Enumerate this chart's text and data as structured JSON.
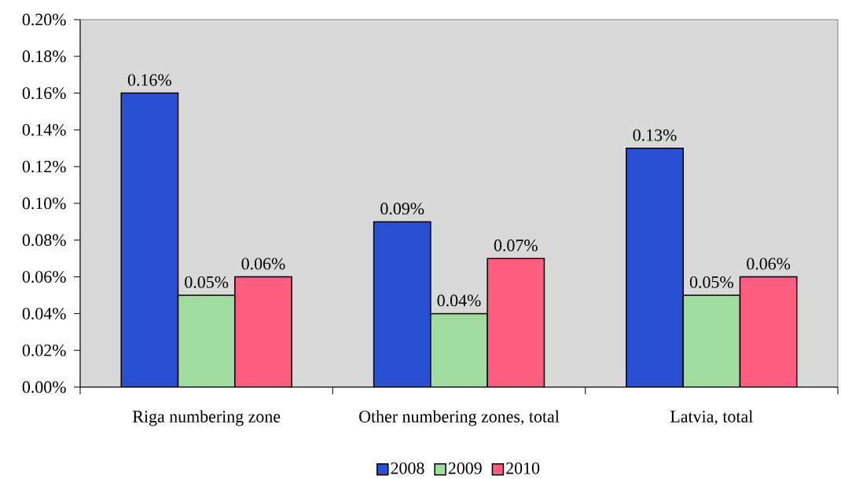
{
  "chart_data": {
    "type": "bar",
    "categories": [
      "Riga numbering zone",
      "Other numbering zones, total",
      "Latvia, total"
    ],
    "series": [
      {
        "name": "2008",
        "color": "#2a4fd0",
        "values": [
          0.16,
          0.09,
          0.13
        ],
        "value_labels": [
          "0.16%",
          "0.09%",
          "0.13%"
        ]
      },
      {
        "name": "2009",
        "color": "#a0dca0",
        "values": [
          0.05,
          0.04,
          0.05
        ],
        "value_labels": [
          "0.05%",
          "0.04%",
          "0.05%"
        ]
      },
      {
        "name": "2010",
        "color": "#ff5c82",
        "values": [
          0.06,
          0.07,
          0.06
        ],
        "value_labels": [
          "0.06%",
          "0.07%",
          "0.06%"
        ]
      }
    ],
    "ylim": [
      0,
      0.2
    ],
    "yticks": [
      {
        "value": 0,
        "label": "0.00%"
      },
      {
        "value": 0.02,
        "label": "0.02%"
      },
      {
        "value": 0.04,
        "label": "0.04%"
      },
      {
        "value": 0.06,
        "label": "0.06%"
      },
      {
        "value": 0.08,
        "label": "0.08%"
      },
      {
        "value": 0.1,
        "label": "0.10%"
      },
      {
        "value": 0.12,
        "label": "0.12%"
      },
      {
        "value": 0.14,
        "label": "0.14%"
      },
      {
        "value": 0.16,
        "label": "0.16%"
      },
      {
        "value": 0.18,
        "label": "0.18%"
      },
      {
        "value": 0.2,
        "label": "0.20%"
      }
    ],
    "legend": "bottom"
  }
}
